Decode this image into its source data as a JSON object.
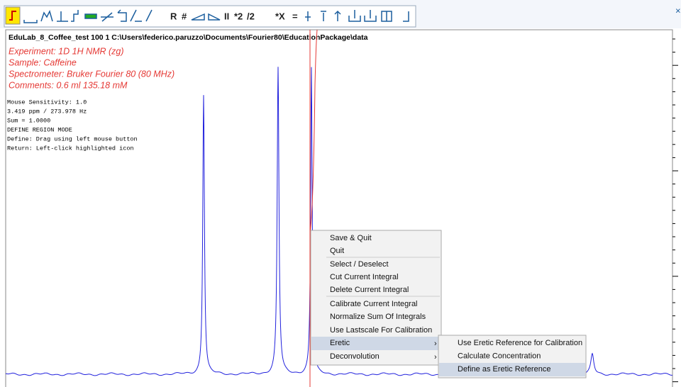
{
  "toolbar": {
    "labels": [
      "R",
      "#",
      "II",
      "*2",
      "/2",
      "*X",
      "="
    ],
    "close": "×"
  },
  "header": {
    "title": "EduLab_8_Coffee_test 100 1 C:\\Users\\federico.paruzzo\\Documents\\Fourier80\\EducationPackage\\data"
  },
  "info": {
    "lines": [
      "Experiment: 1D 1H NMR (zg)",
      "Sample: Caffeine",
      "Spectrometer: Bruker Fourier 80 (80 MHz)",
      "Comments: 0.6 ml 135.18 mM"
    ]
  },
  "status": {
    "lines": [
      "Mouse Sensitivity: 1.0",
      "3.419 ppm / 273.978 Hz",
      "Sum = 1.0000",
      "DEFINE REGION MODE",
      "Define: Drag using left mouse button",
      "Return: Left-click highlighted icon"
    ]
  },
  "menu": {
    "items": [
      "Save & Quit",
      "Quit",
      "Select / Deselect",
      "Cut Current Integral",
      "Delete Current Integral",
      "Calibrate Current Integral",
      "Normalize Sum Of Integrals",
      "Use Lastscale For Calibration",
      "Eretic",
      "Deconvolution"
    ]
  },
  "submenu": {
    "items": [
      "Use Eretic Reference for Calibration",
      "Calculate Concentration",
      "Define as Eretic Reference"
    ]
  }
}
